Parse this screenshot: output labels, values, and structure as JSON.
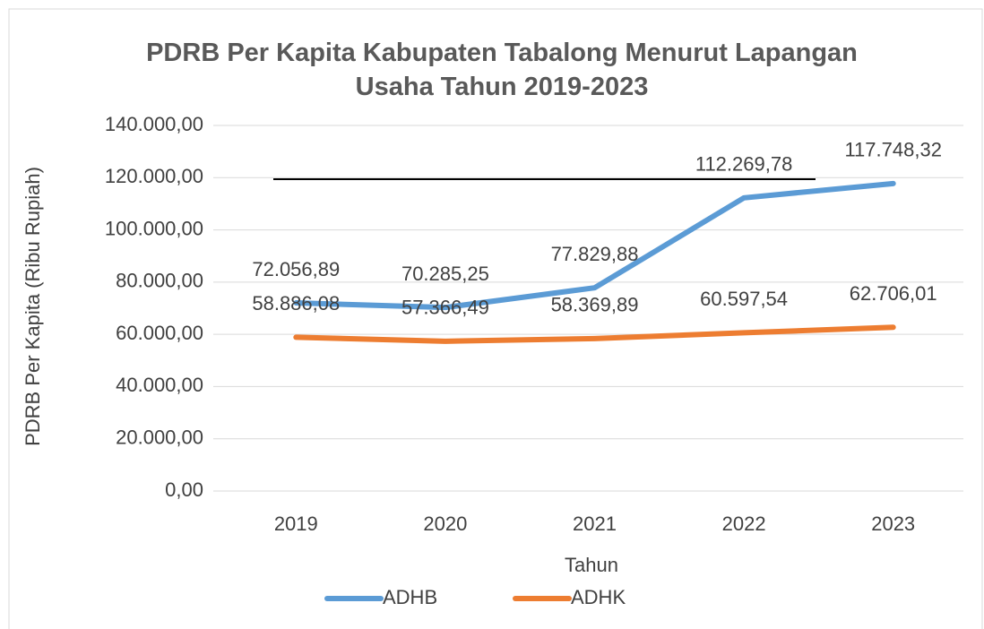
{
  "chart_data": {
    "type": "line",
    "title": "PDRB Per Kapita Kabupaten Tabalong Menurut Lapangan Usaha Tahun 2019-2023",
    "x_label": "Tahun",
    "y_label": "PDRB Per Kapita (Ribu Rupiah)",
    "categories": [
      "2019",
      "2020",
      "2021",
      "2022",
      "2023"
    ],
    "series": [
      {
        "name": "ADHB",
        "color": "#5b9bd5",
        "values": [
          72056.89,
          70285.25,
          77829.88,
          112269.78,
          117748.32
        ],
        "value_labels": [
          "72.056,89",
          "70.285,25",
          "77.829,88",
          "112.269,78",
          "117.748,32"
        ]
      },
      {
        "name": "ADHK",
        "color": "#ed7d31",
        "values": [
          58886.08,
          57366.49,
          58369.89,
          60597.54,
          62706.01
        ],
        "value_labels": [
          "58.886,08",
          "57.366,49",
          "58.369,89",
          "60.597,54",
          "62.706,01"
        ]
      }
    ],
    "ylim": [
      0,
      140000
    ],
    "yticks": [
      {
        "value": 0,
        "label": "0,00"
      },
      {
        "value": 20000,
        "label": "20.000,00"
      },
      {
        "value": 40000,
        "label": "40.000,00"
      },
      {
        "value": 60000,
        "label": "60.000,00"
      },
      {
        "value": 80000,
        "label": "80.000,00"
      },
      {
        "value": 100000,
        "label": "100.000,00"
      },
      {
        "value": 120000,
        "label": "120.000,00"
      },
      {
        "value": 140000,
        "label": "140.000,00"
      }
    ],
    "grid": true,
    "legend": "bottom"
  }
}
